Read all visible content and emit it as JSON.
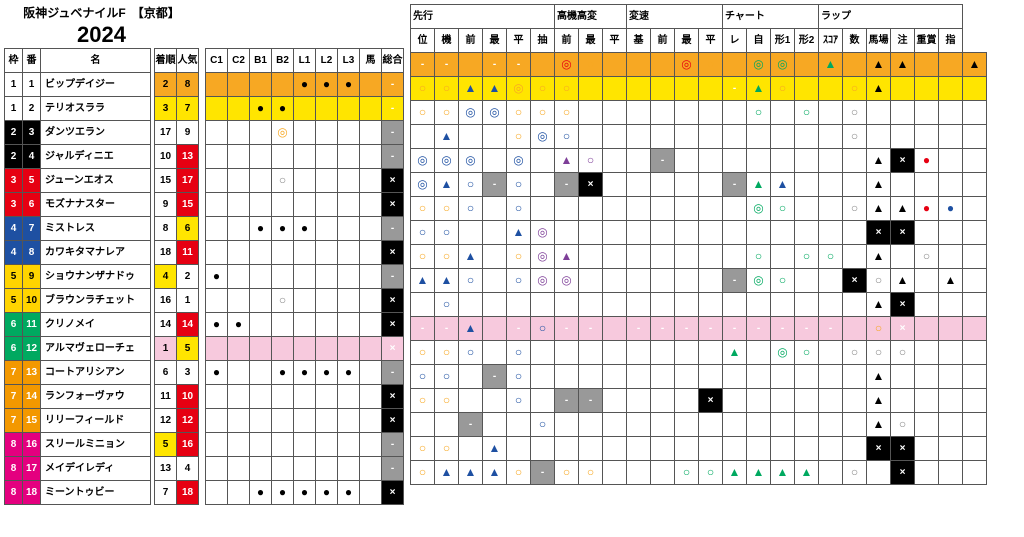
{
  "title": "阪神ジュベナイルF　【京都】",
  "year": "2024",
  "left_headers": {
    "frame": "枠",
    "num": "番",
    "name": "名",
    "rank": "着順",
    "pop": "人気"
  },
  "mid_headers": [
    "C1",
    "C2",
    "B1",
    "B2",
    "L1",
    "L2",
    "L3",
    "馬",
    "総合"
  ],
  "right_groups": [
    {
      "label": "先行",
      "cols": [
        "位",
        "機",
        "前",
        "最",
        "平",
        "抽"
      ]
    },
    {
      "label": "高機高変",
      "cols": [
        "前",
        "最",
        "平"
      ]
    },
    {
      "label": "変速",
      "cols": [
        "基",
        "前",
        "最",
        "平"
      ]
    },
    {
      "label": "チャート",
      "cols": [
        "レ",
        "自",
        "形1",
        "形2"
      ]
    },
    {
      "label": "ラップ",
      "cols": [
        "ｽｺｱ",
        "数",
        "馬場",
        "注",
        "重賞",
        "指"
      ]
    }
  ],
  "frame_colors": {
    "1": "#ffffff",
    "2": "#000000",
    "3": "#e60012",
    "4": "#1e50a2",
    "5": "#ffd400",
    "6": "#00a960",
    "7": "#f39800",
    "8": "#e4007f"
  },
  "frame_text": {
    "1": "#000",
    "5": "#000"
  },
  "rank_colors": {
    "orange": "#f7a823",
    "yellow": "#ffe500",
    "red": "#e60012",
    "pink": "#f7c9dd",
    "white": "#ffffff"
  },
  "row_hl": {
    "0": "#f7a823",
    "1": "#ffe500",
    "11": "#f7c9dd"
  },
  "marks": {
    "dc_y": "◎",
    "dc_b": "◎",
    "dc_p": "◎",
    "dc_g": "◎",
    "dc_o": "◎",
    "c_y": "○",
    "c_b": "○",
    "c_p": "○",
    "c_g": "○",
    "c_w": "○",
    "t_b": "▲",
    "t_p": "▲",
    "t_g": "▲",
    "t_k": "▲",
    "t_w": "△",
    "dot": "●",
    "dot_r": "●",
    "dot_bl": "●",
    "x": "×",
    "dash": "-"
  },
  "mark_colors": {
    "dc_y": "#f7a823",
    "dc_b": "#1e50a2",
    "dc_p": "#7e3f98",
    "dc_g": "#00a960",
    "dc_o": "#e60012",
    "c_y": "#f7a823",
    "c_b": "#1e50a2",
    "c_p": "#7e3f98",
    "c_g": "#00a960",
    "c_w": "#888",
    "t_b": "#1e50a2",
    "t_p": "#7e3f98",
    "t_g": "#00a960",
    "t_k": "#000",
    "t_w": "#888",
    "dot": "#000",
    "dot_r": "#e60012",
    "dot_bl": "#1e50a2"
  },
  "horses": [
    {
      "f": 1,
      "n": 1,
      "name": "ビップデイジー",
      "rank": 2,
      "rk_c": "orange",
      "pop": 8,
      "pop_c": "orange",
      "mid": [
        "",
        "",
        "",
        "",
        "dot",
        "dot",
        "dot",
        "",
        "dash"
      ],
      "r": [
        "dash",
        "dash",
        "",
        "dash",
        "dash",
        "",
        "dc_o",
        "c_y",
        "",
        "",
        "",
        "dc_o",
        "c_y",
        "",
        "dc_g",
        "dc_g",
        "",
        "t_g",
        "",
        "t_k",
        "t_k",
        "",
        "",
        "t_k"
      ]
    },
    {
      "f": 1,
      "n": 2,
      "name": "テリオスララ",
      "rank": 3,
      "rk_c": "yellow",
      "pop": 7,
      "pop_c": "yellow",
      "mid": [
        "",
        "",
        "dot",
        "dot",
        "",
        "",
        "",
        "",
        "dash"
      ],
      "r": [
        "c_y",
        "c_y",
        "t_b",
        "t_b",
        "dc_y",
        "c_y",
        "c_y",
        "",
        "",
        "",
        "",
        "",
        "",
        "dash",
        "t_g",
        "c_y",
        "",
        "",
        "c_y",
        "t_k",
        "",
        "",
        "",
        ""
      ]
    },
    {
      "f": 2,
      "n": 3,
      "name": "ダンツエラン",
      "rank": 17,
      "rk_c": "white",
      "pop": 9,
      "pop_c": "white",
      "mid": [
        "",
        "",
        "",
        "dc_y",
        "",
        "",
        "",
        "",
        "dash"
      ],
      "r": [
        "c_y",
        "c_y",
        "dc_b",
        "dc_b",
        "c_y",
        "c_y",
        "c_y",
        "",
        "",
        "",
        "",
        "",
        "",
        "",
        "c_g",
        "",
        "c_g",
        "",
        "c_w",
        "",
        "",
        "",
        "",
        ""
      ]
    },
    {
      "f": 2,
      "n": 4,
      "name": "ジャルディニエ",
      "rank": 10,
      "rk_c": "white",
      "pop": 13,
      "pop_c": "red",
      "mid": [
        "",
        "",
        "",
        "",
        "",
        "",
        "",
        "",
        "dash"
      ],
      "r": [
        "",
        "t_b",
        "",
        "",
        "c_y",
        "dc_b",
        "c_b",
        "",
        "",
        "",
        "",
        "",
        "",
        "",
        "",
        "",
        "",
        "",
        "c_w",
        "",
        "",
        "",
        "",
        ""
      ]
    },
    {
      "f": 3,
      "n": 5,
      "name": "ジューンエオス",
      "rank": 15,
      "rk_c": "white",
      "pop": 17,
      "pop_c": "red",
      "mid": [
        "",
        "",
        "",
        "c_w",
        "",
        "",
        "",
        "",
        "x"
      ],
      "r": [
        "dc_b",
        "dc_b",
        "dc_b",
        "",
        "dc_b",
        "",
        "t_p",
        "c_p",
        "",
        "",
        "dash",
        "",
        "",
        "",
        "",
        "",
        "",
        "",
        "",
        "t_k",
        "x",
        "dot_r",
        "",
        ""
      ]
    },
    {
      "f": 3,
      "n": 6,
      "name": "モズナナスター",
      "rank": 9,
      "rk_c": "white",
      "pop": 15,
      "pop_c": "red",
      "mid": [
        "",
        "",
        "",
        "",
        "",
        "",
        "",
        "",
        "x"
      ],
      "r": [
        "dc_b",
        "t_b",
        "c_b",
        "dash",
        "c_b",
        "",
        "dash",
        "x",
        "",
        "",
        "",
        "",
        "",
        "dash",
        "t_g",
        "t_b",
        "",
        "",
        "",
        "t_k",
        "",
        "",
        "",
        ""
      ]
    },
    {
      "f": 4,
      "n": 7,
      "name": "ミストレス",
      "rank": 8,
      "rk_c": "white",
      "pop": 6,
      "pop_c": "yellow",
      "mid": [
        "",
        "",
        "dot",
        "dot",
        "dot",
        "",
        "",
        "",
        "dash"
      ],
      "r": [
        "c_y",
        "c_y",
        "c_b",
        "",
        "c_b",
        "",
        "",
        "",
        "",
        "",
        "",
        "",
        "",
        "",
        "dc_g",
        "c_g",
        "",
        "",
        "c_w",
        "t_k",
        "t_k",
        "dot_r",
        "dot_bl",
        ""
      ]
    },
    {
      "f": 4,
      "n": 8,
      "name": "カワキタマナレア",
      "rank": 18,
      "rk_c": "white",
      "pop": 11,
      "pop_c": "red",
      "mid": [
        "",
        "",
        "",
        "",
        "",
        "",
        "",
        "",
        "x"
      ],
      "r": [
        "c_b",
        "c_b",
        "",
        "",
        "t_b",
        "dc_p",
        "",
        "",
        "",
        "",
        "",
        "",
        "",
        "",
        "",
        "",
        "",
        "",
        "",
        "x",
        "x",
        "",
        "",
        ""
      ]
    },
    {
      "f": 5,
      "n": 9,
      "name": "ショウナンザナドゥ",
      "rank": 4,
      "rk_c": "yellow",
      "pop": 2,
      "pop_c": "white",
      "mid": [
        "dot",
        "",
        "",
        "",
        "",
        "",
        "",
        "",
        "dash"
      ],
      "r": [
        "c_y",
        "c_y",
        "t_b",
        "",
        "c_y",
        "dc_p",
        "t_p",
        "",
        "",
        "",
        "",
        "",
        "",
        "",
        "c_g",
        "",
        "c_g",
        "c_g",
        "",
        "t_k",
        "",
        "c_w",
        "",
        ""
      ]
    },
    {
      "f": 5,
      "n": 10,
      "name": "ブラウンラチェット",
      "rank": 16,
      "rk_c": "white",
      "pop": 1,
      "pop_c": "white",
      "mid": [
        "",
        "",
        "",
        "c_w",
        "",
        "",
        "",
        "",
        "x"
      ],
      "r": [
        "t_b",
        "t_b",
        "c_b",
        "",
        "c_b",
        "dc_p",
        "dc_p",
        "",
        "",
        "",
        "",
        "",
        "",
        "dash",
        "dc_g",
        "c_g",
        "",
        "",
        "x",
        "c_w",
        "t_k",
        "",
        "t_k",
        ""
      ]
    },
    {
      "f": 6,
      "n": 11,
      "name": "クリノメイ",
      "rank": 14,
      "rk_c": "white",
      "pop": 14,
      "pop_c": "red",
      "mid": [
        "dot",
        "dot",
        "",
        "",
        "",
        "",
        "",
        "",
        "x"
      ],
      "r": [
        "",
        "c_b",
        "",
        "",
        "",
        "",
        "",
        "",
        "",
        "",
        "",
        "",
        "",
        "",
        "",
        "",
        "",
        "",
        "",
        "t_k",
        "x",
        "",
        "",
        ""
      ]
    },
    {
      "f": 6,
      "n": 12,
      "name": "アルマヴェローチェ",
      "rank": 1,
      "rk_c": "pink",
      "pop": 5,
      "pop_c": "yellow",
      "mid": [
        "",
        "",
        "",
        "",
        "",
        "",
        "",
        "",
        "x"
      ],
      "r": [
        "dash",
        "dash",
        "t_b",
        "",
        "dash",
        "c_b",
        "dash",
        "dash",
        "",
        "dash",
        "dash",
        "dash",
        "dash",
        "dash",
        "dash",
        "dash",
        "dash",
        "dash",
        "",
        "c_y",
        "x",
        "",
        "",
        ""
      ]
    },
    {
      "f": 7,
      "n": 13,
      "name": "コートアリシアン",
      "rank": 6,
      "rk_c": "white",
      "pop": 3,
      "pop_c": "white",
      "mid": [
        "dot",
        "",
        "",
        "dot",
        "dot",
        "dot",
        "dot",
        "",
        "dash"
      ],
      "r": [
        "c_y",
        "c_y",
        "c_b",
        "",
        "c_b",
        "",
        "",
        "",
        "",
        "",
        "",
        "",
        "",
        "t_g",
        "",
        "dc_g",
        "c_g",
        "",
        "c_w",
        "c_w",
        "c_w",
        "",
        "",
        ""
      ]
    },
    {
      "f": 7,
      "n": 14,
      "name": "ランフォーヴァウ",
      "rank": 11,
      "rk_c": "white",
      "pop": 10,
      "pop_c": "red",
      "mid": [
        "",
        "",
        "",
        "",
        "",
        "",
        "",
        "",
        "x"
      ],
      "r": [
        "c_b",
        "c_b",
        "",
        "dash",
        "c_b",
        "",
        "",
        "",
        "",
        "",
        "",
        "",
        "",
        "",
        "",
        "",
        "",
        "",
        "",
        "t_k",
        "",
        "",
        "",
        ""
      ]
    },
    {
      "f": 7,
      "n": 15,
      "name": "リリーフィールド",
      "rank": 12,
      "rk_c": "white",
      "pop": 12,
      "pop_c": "red",
      "mid": [
        "",
        "",
        "",
        "",
        "",
        "",
        "",
        "",
        "x"
      ],
      "r": [
        "c_y",
        "c_y",
        "",
        "",
        "c_b",
        "",
        "dash",
        "dash",
        "",
        "",
        "",
        "",
        "x",
        "",
        "",
        "",
        "",
        "",
        "",
        "t_k",
        "",
        "",
        "",
        ""
      ]
    },
    {
      "f": 8,
      "n": 16,
      "name": "スリールミニョン",
      "rank": 5,
      "rk_c": "yellow",
      "pop": 16,
      "pop_c": "red",
      "mid": [
        "",
        "",
        "",
        "",
        "",
        "",
        "",
        "",
        "dash"
      ],
      "r": [
        "",
        "",
        "dash",
        "",
        "",
        "c_b",
        "",
        "",
        "",
        "",
        "",
        "",
        "",
        "",
        "",
        "",
        "",
        "",
        "",
        "t_k",
        "c_w",
        "",
        "",
        ""
      ]
    },
    {
      "f": 8,
      "n": 17,
      "name": "メイデイレディ",
      "rank": 13,
      "rk_c": "white",
      "pop": 4,
      "pop_c": "white",
      "mid": [
        "",
        "",
        "",
        "",
        "",
        "",
        "",
        "",
        "dash"
      ],
      "r": [
        "c_y",
        "c_y",
        "",
        "t_b",
        "",
        "",
        "",
        "",
        "",
        "",
        "",
        "",
        "",
        "",
        "",
        "",
        "",
        "",
        "",
        "x",
        "x",
        "",
        "",
        ""
      ]
    },
    {
      "f": 8,
      "n": 18,
      "name": "ミーントゥビー",
      "rank": 7,
      "rk_c": "white",
      "pop": 18,
      "pop_c": "red",
      "mid": [
        "",
        "",
        "dot",
        "dot",
        "dot",
        "dot",
        "dot",
        "",
        "x"
      ],
      "r": [
        "c_y",
        "t_b",
        "t_b",
        "t_b",
        "c_y",
        "dash",
        "c_y",
        "c_y",
        "",
        "",
        "",
        "c_g",
        "c_g",
        "t_g",
        "t_g",
        "t_g",
        "t_g",
        "",
        "c_w",
        "",
        "x",
        "",
        "",
        ""
      ]
    }
  ]
}
